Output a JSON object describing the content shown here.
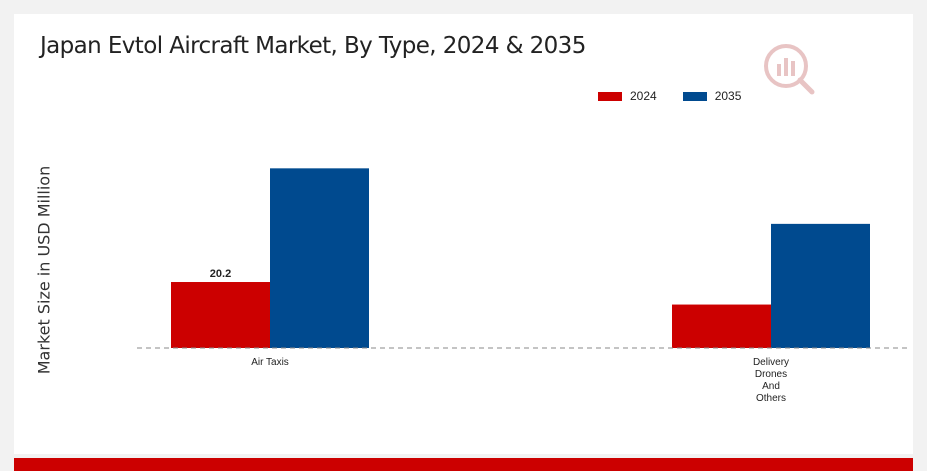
{
  "chart_data": {
    "type": "bar",
    "title": "Japan Evtol Aircraft Market, By Type, 2024 & 2035",
    "ylabel": "Market Size in USD Million",
    "xlabel": "",
    "categories": [
      "Air Taxis",
      "Delivery Drones And Others"
    ],
    "category_lines": [
      [
        "Air Taxis"
      ],
      [
        "Delivery",
        "Drones",
        "And",
        "Others"
      ]
    ],
    "series": [
      {
        "name": "2024",
        "color": "#cc0000",
        "values": [
          20.2,
          13.3
        ]
      },
      {
        "name": "2035",
        "color": "#004a8f",
        "values": [
          55.0,
          38.0
        ]
      }
    ],
    "data_labels": [
      {
        "series": 0,
        "index": 0,
        "text": "20.2"
      }
    ],
    "ylim": [
      0,
      60
    ],
    "grid": false,
    "legend_position": "top-right"
  },
  "footer_color": "#cc0000"
}
